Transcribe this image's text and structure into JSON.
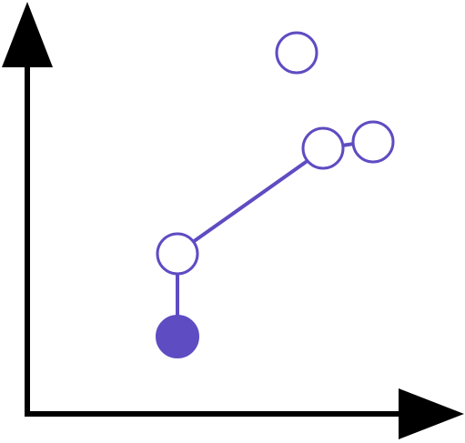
{
  "colors": {
    "axis": "#000000",
    "accent": "#5e4cc2",
    "background": "#ffffff"
  },
  "nodes": [
    {
      "id": "start-filled",
      "state": "filled"
    },
    {
      "id": "low-hollow",
      "state": "hollow"
    },
    {
      "id": "upper-hollow",
      "state": "hollow"
    },
    {
      "id": "right-hollow",
      "state": "hollow"
    },
    {
      "id": "top-isolated",
      "state": "hollow"
    }
  ],
  "edges": [
    {
      "from": "start-filled",
      "to": "low-hollow"
    },
    {
      "from": "low-hollow",
      "to": "upper-hollow"
    },
    {
      "from": "upper-hollow",
      "to": "right-hollow"
    }
  ]
}
